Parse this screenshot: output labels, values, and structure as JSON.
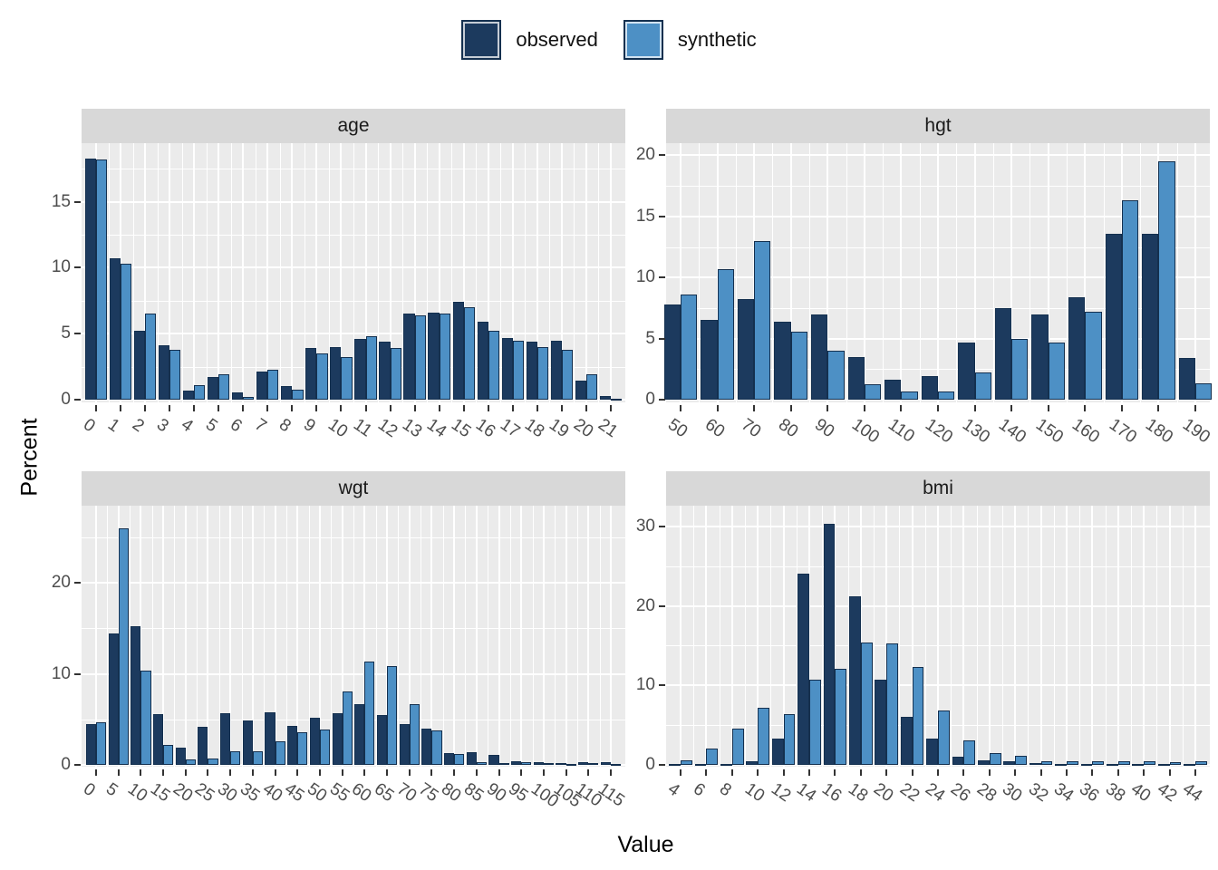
{
  "legend": {
    "items": [
      {
        "label": "observed",
        "color": "#1C3A5E"
      },
      {
        "label": "synthetic",
        "color": "#4D90C5"
      }
    ]
  },
  "axes": {
    "x_title": "Value",
    "y_title": "Percent"
  },
  "style": {
    "observed_color": "#1C3A5E",
    "synthetic_color": "#4D90C5",
    "bar_stroke": "#14304F",
    "panel_bg": "#EBEBEB",
    "strip_bg": "#D8D8D8",
    "gridline": "#FFFFFF",
    "axis_text": "#4D4D4D",
    "tick_mark": "#333333"
  },
  "chart_data": [
    {
      "type": "bar",
      "title": "age",
      "categories": [
        "0",
        "1",
        "2",
        "3",
        "4",
        "5",
        "6",
        "7",
        "8",
        "9",
        "10",
        "11",
        "12",
        "13",
        "14",
        "15",
        "16",
        "17",
        "18",
        "19",
        "20",
        "21"
      ],
      "series": [
        {
          "name": "observed",
          "values": [
            18.3,
            10.7,
            5.2,
            4.1,
            0.7,
            1.7,
            0.55,
            2.1,
            1.0,
            3.9,
            4.0,
            4.6,
            4.4,
            6.5,
            6.6,
            7.4,
            5.9,
            4.7,
            4.4,
            4.5,
            1.45,
            0.25
          ]
        },
        {
          "name": "synthetic",
          "values": [
            18.2,
            10.3,
            6.5,
            3.8,
            1.1,
            1.9,
            0.2,
            2.3,
            0.75,
            3.5,
            3.2,
            4.8,
            3.9,
            6.4,
            6.5,
            7.0,
            5.2,
            4.5,
            4.0,
            3.8,
            1.9,
            0.1
          ]
        }
      ],
      "y_ticks": [
        0,
        5,
        10,
        15
      ],
      "ylim": [
        0,
        19.45
      ],
      "grid": true,
      "legend_position": "top"
    },
    {
      "type": "bar",
      "title": "hgt",
      "categories": [
        "50",
        "60",
        "70",
        "80",
        "90",
        "100",
        "110",
        "120",
        "130",
        "140",
        "150",
        "160",
        "170",
        "180",
        "190"
      ],
      "series": [
        {
          "name": "observed",
          "values": [
            7.8,
            6.5,
            8.2,
            6.4,
            7.0,
            3.5,
            1.6,
            1.9,
            4.7,
            7.5,
            7.0,
            8.4,
            13.6,
            13.6,
            3.4
          ]
        },
        {
          "name": "synthetic",
          "values": [
            8.6,
            10.7,
            13.0,
            5.6,
            4.0,
            1.25,
            0.65,
            0.65,
            2.2,
            4.95,
            4.7,
            7.2,
            16.3,
            19.5,
            1.3
          ]
        }
      ],
      "y_ticks": [
        0,
        5,
        10,
        15,
        20
      ],
      "ylim": [
        0,
        21.0
      ],
      "grid": true,
      "legend_position": "top"
    },
    {
      "type": "bar",
      "title": "wgt",
      "categories": [
        "0",
        "5",
        "10",
        "15",
        "20",
        "25",
        "30",
        "35",
        "40",
        "45",
        "50",
        "55",
        "60",
        "65",
        "70",
        "75",
        "80",
        "85",
        "90",
        "95",
        "100",
        "105",
        "110",
        "115"
      ],
      "series": [
        {
          "name": "observed",
          "values": [
            4.5,
            14.4,
            15.2,
            5.6,
            1.9,
            4.2,
            5.7,
            4.9,
            5.8,
            4.3,
            5.2,
            5.7,
            6.7,
            5.5,
            4.5,
            4.0,
            1.3,
            1.4,
            1.05,
            0.4,
            0.3,
            0.15,
            0.3,
            0.3
          ]
        },
        {
          "name": "synthetic",
          "values": [
            4.7,
            26.0,
            10.4,
            2.2,
            0.6,
            0.7,
            1.5,
            1.5,
            2.6,
            3.6,
            3.9,
            8.1,
            11.4,
            10.9,
            6.7,
            3.8,
            1.2,
            0.3,
            0.2,
            0.3,
            0.15,
            0.1,
            0.15,
            0.1
          ]
        }
      ],
      "y_ticks": [
        0,
        10,
        20
      ],
      "ylim": [
        0,
        28.5
      ],
      "grid": true,
      "legend_position": "top"
    },
    {
      "type": "bar",
      "title": "bmi",
      "categories": [
        "4",
        "6",
        "8",
        "10",
        "12",
        "14",
        "16",
        "18",
        "20",
        "22",
        "24",
        "26",
        "28",
        "30",
        "32",
        "34",
        "36",
        "38",
        "40",
        "42",
        "44"
      ],
      "series": [
        {
          "name": "observed",
          "values": [
            0.05,
            0.1,
            0.15,
            0.4,
            3.3,
            24.0,
            30.3,
            21.2,
            10.7,
            6.0,
            3.3,
            1.0,
            0.55,
            0.5,
            0.2,
            0.15,
            0.15,
            0.1,
            0.1,
            0.1,
            0.1
          ]
        },
        {
          "name": "synthetic",
          "values": [
            0.6,
            2.0,
            4.6,
            7.2,
            6.4,
            10.7,
            12.1,
            15.4,
            15.3,
            12.3,
            6.85,
            3.1,
            1.5,
            1.15,
            0.4,
            0.45,
            0.5,
            0.5,
            0.4,
            0.35,
            0.45
          ]
        }
      ],
      "y_ticks": [
        0,
        10,
        20,
        30
      ],
      "ylim": [
        0,
        32.6
      ],
      "grid": true,
      "legend_position": "top"
    }
  ]
}
